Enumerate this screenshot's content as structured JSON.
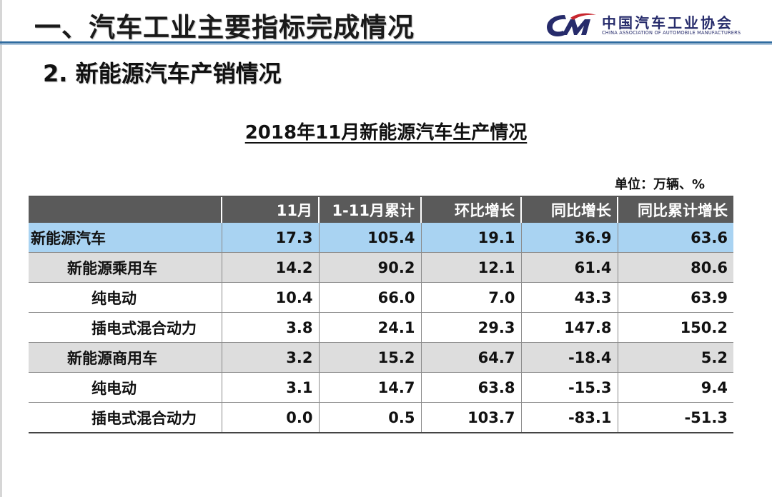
{
  "header": {
    "section_title": "一、汽车工业主要指标完成情况",
    "logo": {
      "name_cn": "中国汽车工业协会",
      "name_en": "CHINA ASSOCIATION OF AUTOMOBILE MANUFACTURERS",
      "brand_color": "#262b6b"
    }
  },
  "subsection_title": "2. 新能源汽车产销情况",
  "table": {
    "title": "2018年11月新能源汽车生产情况",
    "unit": "单位：万辆、%",
    "columns": [
      "",
      "11月",
      "1-11月累计",
      "环比增长",
      "同比增长",
      "同比累计增长"
    ],
    "rows": [
      {
        "name": "新能源汽车",
        "level": 0,
        "values": [
          "17.3",
          "105.4",
          "19.1",
          "36.9",
          "63.6"
        ]
      },
      {
        "name": "新能源乘用车",
        "level": 1,
        "values": [
          "14.2",
          "90.2",
          "12.1",
          "61.4",
          "80.6"
        ]
      },
      {
        "name": "纯电动",
        "level": 2,
        "values": [
          "10.4",
          "66.0",
          "7.0",
          "43.3",
          "63.9"
        ]
      },
      {
        "name": "插电式混合动力",
        "level": 2,
        "values": [
          "3.8",
          "24.1",
          "29.3",
          "147.8",
          "150.2"
        ]
      },
      {
        "name": "新能源商用车",
        "level": 1,
        "values": [
          "3.2",
          "15.2",
          "64.7",
          "-18.4",
          "5.2"
        ]
      },
      {
        "name": "纯电动",
        "level": 2,
        "values": [
          "3.1",
          "14.7",
          "63.8",
          "-15.3",
          "9.4"
        ]
      },
      {
        "name": "插电式混合动力",
        "level": 2,
        "values": [
          "0.0",
          "0.5",
          "103.7",
          "-83.1",
          "-51.3"
        ]
      }
    ],
    "colors": {
      "header_bg": "#5a5a5a",
      "total_row_bg": "#a9d3f2",
      "category_row_bg": "#dddddd",
      "accent_rule": "#2f6b9f"
    }
  }
}
